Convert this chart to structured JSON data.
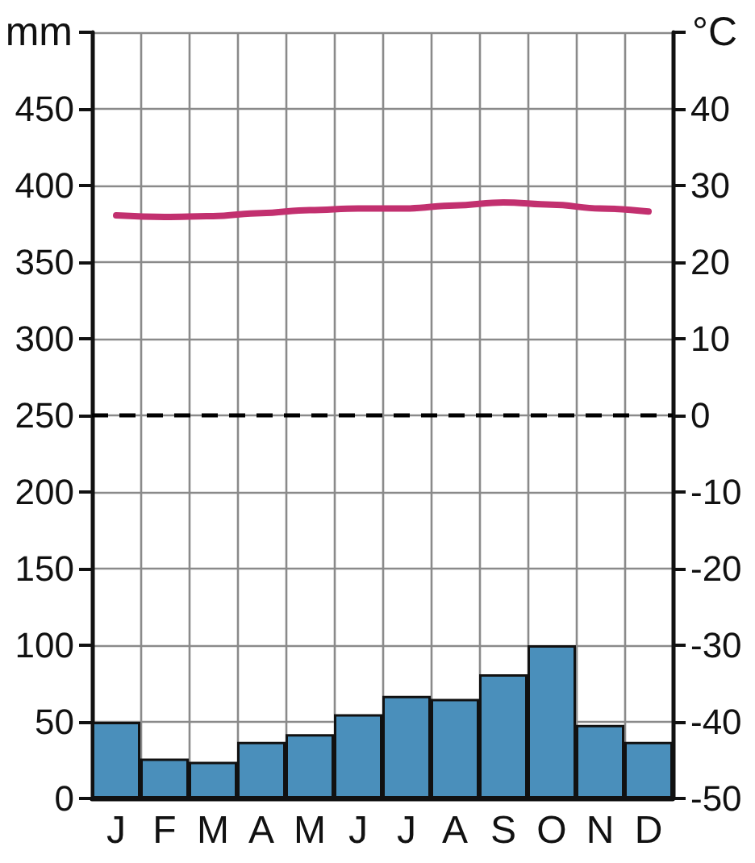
{
  "chart_data": {
    "type": "bar",
    "categories": [
      "J",
      "F",
      "M",
      "A",
      "M",
      "J",
      "J",
      "A",
      "S",
      "O",
      "N",
      "D"
    ],
    "ylabel": "mm",
    "y2label": "°C",
    "series": [
      {
        "color": "#4a8fbb",
        "values": [
          50,
          26,
          24,
          37,
          42,
          55,
          67,
          65,
          81,
          100,
          48,
          37
        ]
      },
      {
        "type": "line",
        "axis": "y2",
        "color": "#c2306f",
        "values": [
          26.1,
          25.9,
          26,
          26.4,
          26.8,
          27,
          27,
          27.4,
          27.8,
          27.5,
          27,
          26.6
        ]
      }
    ],
    "ylim": [
      0,
      500
    ],
    "yticks": [
      0,
      50,
      100,
      150,
      200,
      250,
      300,
      350,
      400,
      450,
      {
        "value": 500,
        "label": null
      }
    ],
    "y2lim": [
      -50,
      50
    ],
    "y2ticks": [
      -50,
      -40,
      -30,
      -20,
      -10,
      0,
      10,
      20,
      30,
      40,
      {
        "value": 50,
        "label": null
      }
    ],
    "grid": true,
    "marker": "none",
    "ref_lines": [
      {
        "axis": "y",
        "value": 250,
        "line_style": "dashed",
        "color": "#000000"
      }
    ]
  }
}
